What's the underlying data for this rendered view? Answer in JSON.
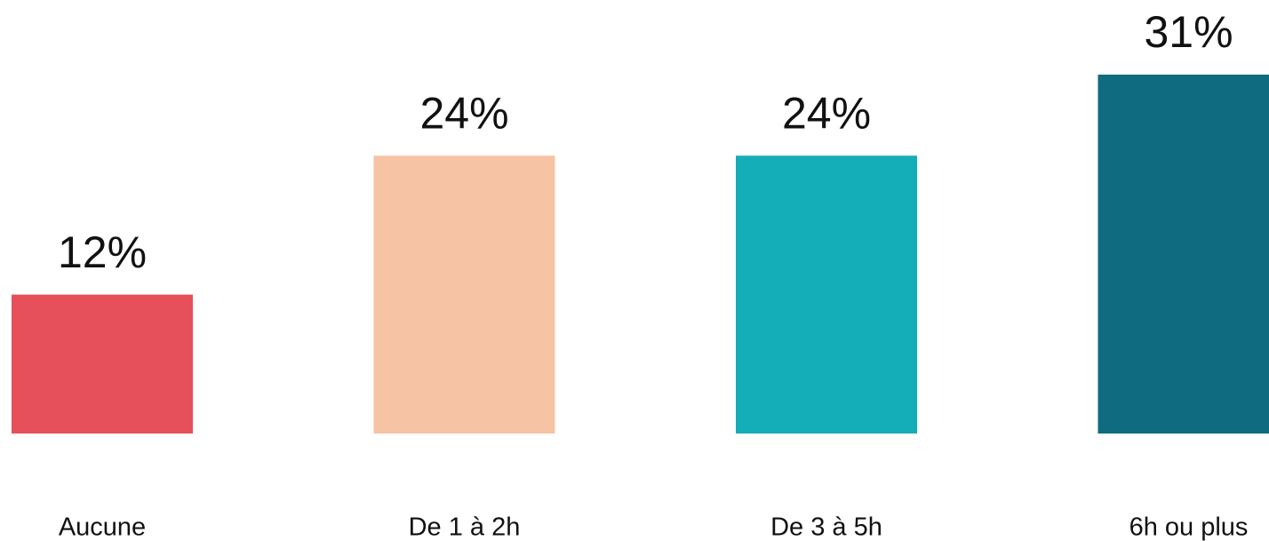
{
  "chart_data": {
    "type": "bar",
    "categories": [
      "Aucune",
      "De 1 à 2h",
      "De 3 à 5h",
      "6h ou plus"
    ],
    "values": [
      12,
      24,
      24,
      31
    ],
    "value_labels": [
      "12%",
      "24%",
      "24%",
      "31%"
    ],
    "colors": [
      "#e5505a",
      "#f6c3a4",
      "#14aeb8",
      "#0e6b80"
    ]
  }
}
